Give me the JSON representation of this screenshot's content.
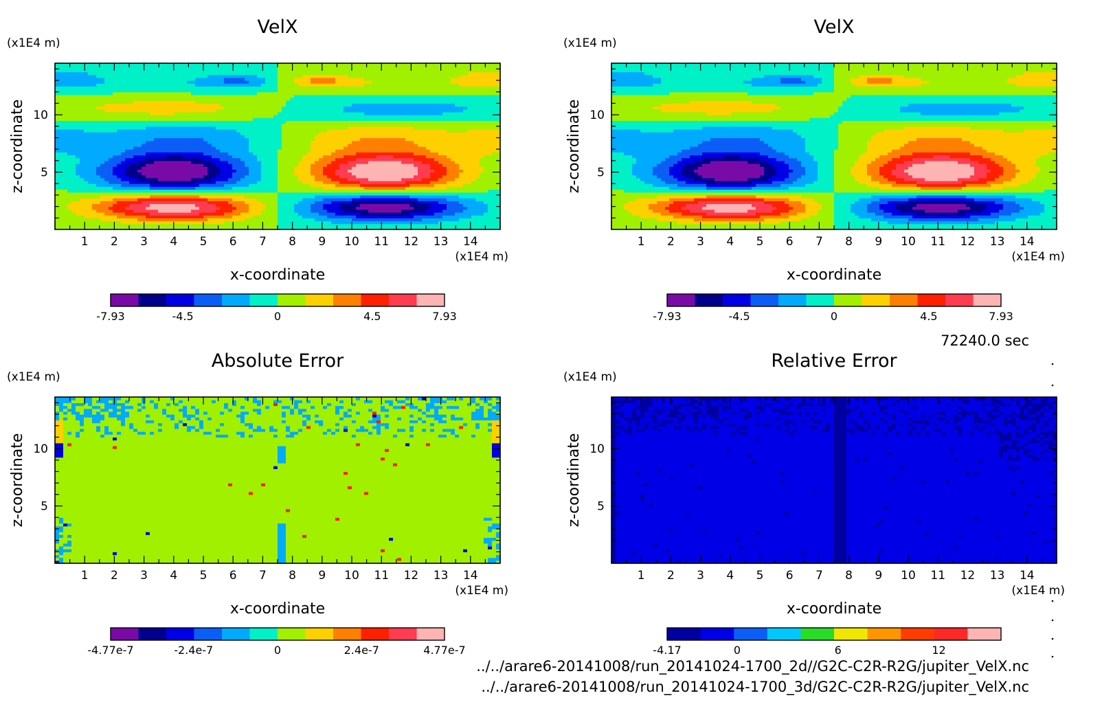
{
  "figure": {
    "time_label": "72240.0 sec",
    "file_paths": [
      "../../arare6-20141008/run_20141024-1700_2d//G2C-C2R-R2G/jupiter_VelX.nc",
      "../../arare6-20141008/run_20141024-1700_3d/G2C-C2R-R2G/jupiter_VelX.nc"
    ]
  },
  "chart_data": [
    {
      "type": "heatmap",
      "title": "VelX",
      "xlabel": "x-coordinate",
      "ylabel": "z-coordinate",
      "x_unit": "(x1E4 m)",
      "y_unit": "(x1E4 m)",
      "xlim": [
        0,
        15
      ],
      "ylim": [
        0,
        14.5
      ],
      "xticks": [
        1,
        2,
        3,
        4,
        5,
        6,
        7,
        8,
        9,
        10,
        11,
        12,
        13,
        14
      ],
      "yticks": [
        5,
        10
      ],
      "pattern": "velocity",
      "colorbar": {
        "colors": [
          "#7a0aa8",
          "#00008c",
          "#0000e6",
          "#0a5ef5",
          "#00aaff",
          "#00f0c8",
          "#a0f000",
          "#ffd000",
          "#ff8000",
          "#ff2000",
          "#ff3c50",
          "#ffb4b4"
        ],
        "tick_values": [
          -7.93,
          -4.5,
          0,
          4.5,
          7.93
        ],
        "tick_labels": [
          "-7.93",
          "-4.5",
          "0",
          "4.5",
          "7.93"
        ],
        "range": [
          -7.93,
          7.93
        ]
      }
    },
    {
      "type": "heatmap",
      "title": "VelX",
      "xlabel": "x-coordinate",
      "ylabel": "z-coordinate",
      "x_unit": "(x1E4 m)",
      "y_unit": "(x1E4 m)",
      "xlim": [
        0,
        15
      ],
      "ylim": [
        0,
        14.5
      ],
      "xticks": [
        1,
        2,
        3,
        4,
        5,
        6,
        7,
        8,
        9,
        10,
        11,
        12,
        13,
        14
      ],
      "yticks": [
        5,
        10
      ],
      "pattern": "velocity",
      "colorbar": {
        "colors": [
          "#7a0aa8",
          "#00008c",
          "#0000e6",
          "#0a5ef5",
          "#00aaff",
          "#00f0c8",
          "#a0f000",
          "#ffd000",
          "#ff8000",
          "#ff2000",
          "#ff3c50",
          "#ffb4b4"
        ],
        "tick_values": [
          -7.93,
          -4.5,
          0,
          4.5,
          7.93
        ],
        "tick_labels": [
          "-7.93",
          "-4.5",
          "0",
          "4.5",
          "7.93"
        ],
        "range": [
          -7.93,
          7.93
        ]
      }
    },
    {
      "type": "heatmap",
      "title": "Absolute Error",
      "xlabel": "x-coordinate",
      "ylabel": "z-coordinate",
      "x_unit": "(x1E4 m)",
      "y_unit": "(x1E4 m)",
      "xlim": [
        0,
        15
      ],
      "ylim": [
        0,
        14.5
      ],
      "xticks": [
        1,
        2,
        3,
        4,
        5,
        6,
        7,
        8,
        9,
        10,
        11,
        12,
        13,
        14
      ],
      "yticks": [
        5,
        10
      ],
      "pattern": "abs_error",
      "colorbar": {
        "colors": [
          "#7a0aa8",
          "#00008c",
          "#0000e6",
          "#0a5ef5",
          "#00aaff",
          "#00f0c8",
          "#a0f000",
          "#ffd000",
          "#ff8000",
          "#ff2000",
          "#ff3c50",
          "#ffb4b4"
        ],
        "tick_values": [
          -4.77e-07,
          -2.4e-07,
          0,
          2.4e-07,
          4.77e-07
        ],
        "tick_labels": [
          "-4.77e-7",
          "-2.4e-7",
          "0",
          "2.4e-7",
          "4.77e-7"
        ],
        "range": [
          -4.77e-07,
          4.77e-07
        ]
      }
    },
    {
      "type": "heatmap",
      "title": "Relative Error",
      "xlabel": "x-coordinate",
      "ylabel": "z-coordinate",
      "x_unit": "(x1E4 m)",
      "y_unit": "(x1E4 m)",
      "xlim": [
        0,
        15
      ],
      "ylim": [
        0,
        14.5
      ],
      "xticks": [
        1,
        2,
        3,
        4,
        5,
        6,
        7,
        8,
        9,
        10,
        11,
        12,
        13,
        14
      ],
      "yticks": [
        5,
        10
      ],
      "pattern": "rel_error",
      "colorbar": {
        "colors": [
          "#0000a0",
          "#0000e6",
          "#0a5ef5",
          "#00c8ff",
          "#28dc28",
          "#f0e600",
          "#ff9600",
          "#ff3c00",
          "#ff2828",
          "#ffb4b4"
        ],
        "tick_values": [
          -4.17,
          0,
          6,
          12
        ],
        "tick_labels": [
          "-4.17",
          "0",
          "6",
          "12"
        ],
        "range": [
          -4.17,
          15.7
        ]
      }
    }
  ]
}
